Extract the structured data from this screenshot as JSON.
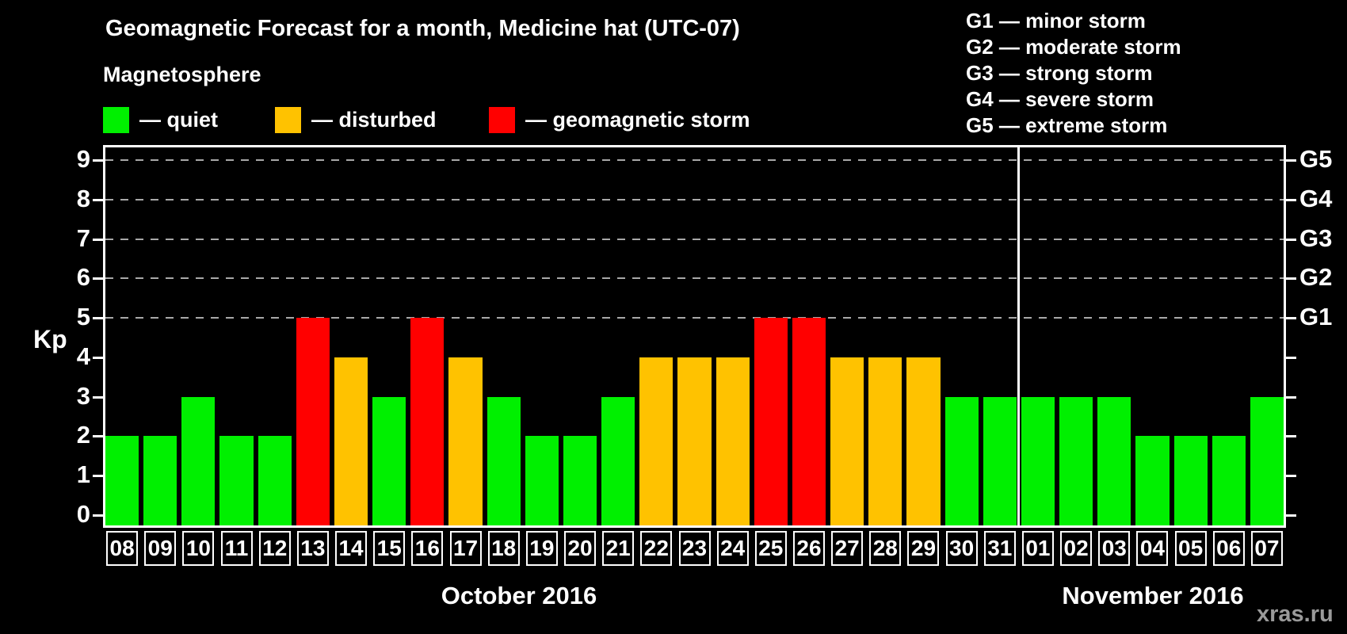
{
  "title": "Geomagnetic Forecast for a month, Medicine hat (UTC-07)",
  "legend": {
    "heading": "Magnetosphere",
    "items": [
      {
        "key": "quiet",
        "label": "— quiet",
        "color": "#00f000"
      },
      {
        "key": "disturbed",
        "label": "— disturbed",
        "color": "#ffc200"
      },
      {
        "key": "storm",
        "label": "— geomagnetic storm",
        "color": "#ff0000"
      }
    ]
  },
  "storm_scale_legend": [
    "G1 — minor storm",
    "G2 — moderate storm",
    "G3 — strong storm",
    "G4 — severe storm",
    "G5 — extreme storm"
  ],
  "watermark": "xras.ru",
  "chart_data": {
    "type": "bar",
    "ylabel": "Kp",
    "ylim": [
      0,
      9
    ],
    "yticks": [
      0,
      1,
      2,
      3,
      4,
      5,
      6,
      7,
      8,
      9
    ],
    "gridlines_at_kp": [
      5,
      6,
      7,
      8,
      9
    ],
    "grid": "dashed-horizontal",
    "legend_position": "top",
    "right_axis_labels": [
      {
        "label": "G5",
        "kp": 9
      },
      {
        "label": "G4",
        "kp": 8
      },
      {
        "label": "G3",
        "kp": 7
      },
      {
        "label": "G2",
        "kp": 6
      },
      {
        "label": "G1",
        "kp": 5
      }
    ],
    "colors_by_status": {
      "quiet": "#00f000",
      "disturbed": "#ffc200",
      "storm": "#ff0000"
    },
    "months": [
      {
        "label": "October 2016",
        "days": [
          {
            "day": "08",
            "kp": 2,
            "status": "quiet"
          },
          {
            "day": "09",
            "kp": 2,
            "status": "quiet"
          },
          {
            "day": "10",
            "kp": 3,
            "status": "quiet"
          },
          {
            "day": "11",
            "kp": 2,
            "status": "quiet"
          },
          {
            "day": "12",
            "kp": 2,
            "status": "quiet"
          },
          {
            "day": "13",
            "kp": 5,
            "status": "storm"
          },
          {
            "day": "14",
            "kp": 4,
            "status": "disturbed"
          },
          {
            "day": "15",
            "kp": 3,
            "status": "quiet"
          },
          {
            "day": "16",
            "kp": 5,
            "status": "storm"
          },
          {
            "day": "17",
            "kp": 4,
            "status": "disturbed"
          },
          {
            "day": "18",
            "kp": 3,
            "status": "quiet"
          },
          {
            "day": "19",
            "kp": 2,
            "status": "quiet"
          },
          {
            "day": "20",
            "kp": 2,
            "status": "quiet"
          },
          {
            "day": "21",
            "kp": 3,
            "status": "quiet"
          },
          {
            "day": "22",
            "kp": 4,
            "status": "disturbed"
          },
          {
            "day": "23",
            "kp": 4,
            "status": "disturbed"
          },
          {
            "day": "24",
            "kp": 4,
            "status": "disturbed"
          },
          {
            "day": "25",
            "kp": 5,
            "status": "storm"
          },
          {
            "day": "26",
            "kp": 5,
            "status": "storm"
          },
          {
            "day": "27",
            "kp": 4,
            "status": "disturbed"
          },
          {
            "day": "28",
            "kp": 4,
            "status": "disturbed"
          },
          {
            "day": "29",
            "kp": 4,
            "status": "disturbed"
          },
          {
            "day": "30",
            "kp": 3,
            "status": "quiet"
          },
          {
            "day": "31",
            "kp": 3,
            "status": "quiet"
          }
        ]
      },
      {
        "label": "November 2016",
        "days": [
          {
            "day": "01",
            "kp": 3,
            "status": "quiet"
          },
          {
            "day": "02",
            "kp": 3,
            "status": "quiet"
          },
          {
            "day": "03",
            "kp": 3,
            "status": "quiet"
          },
          {
            "day": "04",
            "kp": 2,
            "status": "quiet"
          },
          {
            "day": "05",
            "kp": 2,
            "status": "quiet"
          },
          {
            "day": "06",
            "kp": 2,
            "status": "quiet"
          },
          {
            "day": "07",
            "kp": 3,
            "status": "quiet"
          }
        ]
      }
    ]
  }
}
